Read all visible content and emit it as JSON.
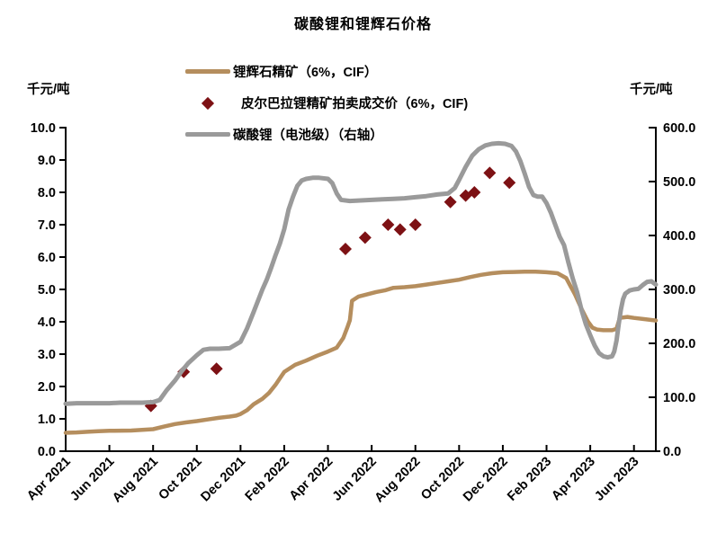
{
  "title": "碳酸锂和锂辉石价格",
  "axis_unit_left": "千元/吨",
  "axis_unit_right": "千元/吨",
  "legend": [
    {
      "label": "锂辉石精矿（6%，CIF）",
      "marker": "line",
      "color": "#B58E5E"
    },
    {
      "label": "皮尔巴拉锂精矿拍卖成交价（6%，CIF)",
      "marker": "diamond",
      "color": "#7D1114"
    },
    {
      "label": "碳酸锂（电池级）（右轴）",
      "marker": "line",
      "color": "#9A9A9A"
    }
  ],
  "chart_data": {
    "type": "line",
    "title": "碳酸锂和锂辉石价格",
    "x_unit": "months since Apr 2021",
    "x_ticks": [
      "Apr 2021",
      "Jun 2021",
      "Aug 2021",
      "Oct 2021",
      "Dec 2021",
      "Feb 2022",
      "Apr 2022",
      "Jun 2022",
      "Aug 2022",
      "Oct 2022",
      "Dec 2022",
      "Feb 2023",
      "Apr 2023",
      "Jun 2023"
    ],
    "x_tick_month_step": 2,
    "x_range_months": [
      0,
      27
    ],
    "left_axis": {
      "unit": "千元/吨",
      "min": 0,
      "max": 10,
      "tick_values": [
        0,
        1,
        2,
        3,
        4,
        5,
        6,
        7,
        8,
        9,
        10
      ],
      "tick_labels": [
        "0.0",
        "1.0",
        "2.0",
        "3.0",
        "4.0",
        "5.0",
        "6.0",
        "7.0",
        "8.0",
        "9.0",
        "10.0"
      ]
    },
    "right_axis": {
      "unit": "千元/吨",
      "min": 0,
      "max": 600,
      "tick_values": [
        0,
        100,
        200,
        300,
        400,
        500,
        600
      ],
      "tick_labels": [
        "0.0",
        "100.0",
        "200.0",
        "300.0",
        "400.0",
        "500.0",
        "600.0"
      ]
    },
    "series": [
      {
        "name": "锂辉石精矿（6%，CIF）",
        "axis": "left",
        "kind": "line",
        "color": "#B58E5E",
        "width": 4.5,
        "points": [
          [
            0,
            0.57
          ],
          [
            0.5,
            0.58
          ],
          [
            1,
            0.6
          ],
          [
            1.5,
            0.62
          ],
          [
            2,
            0.63
          ],
          [
            3,
            0.64
          ],
          [
            4,
            0.68
          ],
          [
            4.5,
            0.76
          ],
          [
            5,
            0.84
          ],
          [
            5.5,
            0.89
          ],
          [
            6,
            0.93
          ],
          [
            6.5,
            0.98
          ],
          [
            7,
            1.03
          ],
          [
            7.5,
            1.07
          ],
          [
            7.8,
            1.1
          ],
          [
            8,
            1.15
          ],
          [
            8.3,
            1.27
          ],
          [
            8.6,
            1.45
          ],
          [
            9,
            1.62
          ],
          [
            9.3,
            1.8
          ],
          [
            9.6,
            2.05
          ],
          [
            9.9,
            2.35
          ],
          [
            10,
            2.45
          ],
          [
            10.5,
            2.67
          ],
          [
            11,
            2.8
          ],
          [
            11.5,
            2.95
          ],
          [
            12,
            3.08
          ],
          [
            12.4,
            3.2
          ],
          [
            12.7,
            3.5
          ],
          [
            12.9,
            3.85
          ],
          [
            13.0,
            4.05
          ],
          [
            13.1,
            4.65
          ],
          [
            13.4,
            4.78
          ],
          [
            13.8,
            4.85
          ],
          [
            14.2,
            4.92
          ],
          [
            14.6,
            4.97
          ],
          [
            15,
            5.05
          ],
          [
            15.5,
            5.07
          ],
          [
            16,
            5.1
          ],
          [
            16.5,
            5.15
          ],
          [
            17,
            5.2
          ],
          [
            17.5,
            5.25
          ],
          [
            18,
            5.3
          ],
          [
            18.5,
            5.38
          ],
          [
            19,
            5.45
          ],
          [
            19.5,
            5.5
          ],
          [
            20,
            5.53
          ],
          [
            20.5,
            5.54
          ],
          [
            21,
            5.55
          ],
          [
            21.5,
            5.55
          ],
          [
            22,
            5.53
          ],
          [
            22.5,
            5.5
          ],
          [
            22.9,
            5.35
          ],
          [
            23.1,
            5.1
          ],
          [
            23.3,
            4.85
          ],
          [
            23.6,
            4.4
          ],
          [
            23.9,
            4.0
          ],
          [
            24.1,
            3.82
          ],
          [
            24.3,
            3.76
          ],
          [
            24.6,
            3.74
          ],
          [
            25,
            3.74
          ],
          [
            25.2,
            3.78
          ],
          [
            25.35,
            4.12
          ],
          [
            25.7,
            4.15
          ],
          [
            26,
            4.12
          ],
          [
            26.5,
            4.08
          ],
          [
            27,
            4.04
          ]
        ]
      },
      {
        "name": "皮尔巴拉锂精矿拍卖成交价（6%，CIF)",
        "axis": "left",
        "kind": "scatter",
        "color": "#7D1114",
        "marker_half": 7,
        "points": [
          [
            3.9,
            1.4
          ],
          [
            5.4,
            2.45
          ],
          [
            6.9,
            2.55
          ],
          [
            12.8,
            6.25
          ],
          [
            13.7,
            6.6
          ],
          [
            14.75,
            7.0
          ],
          [
            15.3,
            6.85
          ],
          [
            16.0,
            7.0
          ],
          [
            17.6,
            7.7
          ],
          [
            18.3,
            7.9
          ],
          [
            18.7,
            8.0
          ],
          [
            19.4,
            8.6
          ],
          [
            20.3,
            8.3
          ]
        ]
      },
      {
        "name": "碳酸锂（电池级）（右轴）",
        "axis": "right",
        "kind": "line",
        "color": "#9A9A9A",
        "width": 5,
        "points": [
          [
            0,
            88
          ],
          [
            0.5,
            89
          ],
          [
            1,
            89
          ],
          [
            1.5,
            89
          ],
          [
            2,
            89
          ],
          [
            2.5,
            90
          ],
          [
            3,
            90
          ],
          [
            3.5,
            90
          ],
          [
            4,
            91
          ],
          [
            4.3,
            95
          ],
          [
            4.6,
            112
          ],
          [
            5,
            131
          ],
          [
            5.3,
            148
          ],
          [
            5.6,
            163
          ],
          [
            6,
            178
          ],
          [
            6.3,
            188
          ],
          [
            6.6,
            190
          ],
          [
            7,
            190
          ],
          [
            7.5,
            191
          ],
          [
            8,
            203
          ],
          [
            8.3,
            228
          ],
          [
            8.6,
            258
          ],
          [
            9,
            300
          ],
          [
            9.2,
            318
          ],
          [
            9.4,
            340
          ],
          [
            9.6,
            363
          ],
          [
            9.8,
            385
          ],
          [
            10,
            412
          ],
          [
            10.2,
            448
          ],
          [
            10.4,
            472
          ],
          [
            10.6,
            492
          ],
          [
            10.8,
            502
          ],
          [
            11,
            505
          ],
          [
            11.3,
            507
          ],
          [
            11.6,
            507
          ],
          [
            12,
            505
          ],
          [
            12.2,
            497
          ],
          [
            12.4,
            478
          ],
          [
            12.6,
            466
          ],
          [
            13,
            464
          ],
          [
            13.5,
            465
          ],
          [
            14,
            466
          ],
          [
            14.5,
            467
          ],
          [
            15,
            468
          ],
          [
            15.5,
            469
          ],
          [
            16,
            471
          ],
          [
            16.5,
            473
          ],
          [
            17,
            476
          ],
          [
            17.5,
            478
          ],
          [
            17.8,
            488
          ],
          [
            18,
            503
          ],
          [
            18.3,
            527
          ],
          [
            18.6,
            548
          ],
          [
            18.9,
            560
          ],
          [
            19.2,
            567
          ],
          [
            19.5,
            570
          ],
          [
            19.8,
            571
          ],
          [
            20.1,
            570
          ],
          [
            20.4,
            566
          ],
          [
            20.6,
            556
          ],
          [
            20.8,
            538
          ],
          [
            21,
            515
          ],
          [
            21.2,
            490
          ],
          [
            21.4,
            475
          ],
          [
            21.6,
            472
          ],
          [
            21.8,
            472
          ],
          [
            22,
            460
          ],
          [
            22.2,
            442
          ],
          [
            22.4,
            420
          ],
          [
            22.6,
            398
          ],
          [
            22.8,
            382
          ],
          [
            23,
            350
          ],
          [
            23.2,
            320
          ],
          [
            23.4,
            295
          ],
          [
            23.6,
            262
          ],
          [
            23.8,
            235
          ],
          [
            24,
            215
          ],
          [
            24.2,
            196
          ],
          [
            24.4,
            182
          ],
          [
            24.6,
            176
          ],
          [
            24.8,
            174
          ],
          [
            25,
            176
          ],
          [
            25.1,
            185
          ],
          [
            25.2,
            205
          ],
          [
            25.3,
            235
          ],
          [
            25.4,
            262
          ],
          [
            25.5,
            282
          ],
          [
            25.6,
            292
          ],
          [
            25.8,
            298
          ],
          [
            26,
            300
          ],
          [
            26.2,
            301
          ],
          [
            26.4,
            308
          ],
          [
            26.6,
            314
          ],
          [
            26.8,
            315
          ],
          [
            27,
            309
          ]
        ]
      }
    ]
  }
}
